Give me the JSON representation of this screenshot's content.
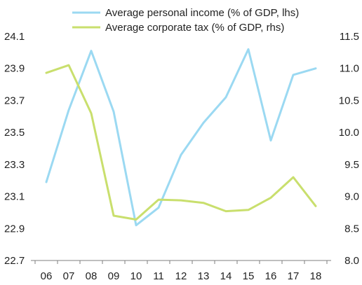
{
  "chart_data": {
    "type": "line",
    "title": "",
    "xlabel": "",
    "ylabel": "",
    "categories": [
      "06",
      "07",
      "08",
      "09",
      "10",
      "11",
      "12",
      "13",
      "14",
      "15",
      "16",
      "17",
      "18"
    ],
    "y_left": {
      "lim": [
        22.7,
        24.1
      ],
      "ticks": [
        22.7,
        22.9,
        23.1,
        23.3,
        23.5,
        23.7,
        23.9,
        24.1
      ],
      "tick_labels": [
        "22.7",
        "22.9",
        "23.1",
        "23.3",
        "23.5",
        "23.7",
        "23.9",
        "24.1"
      ]
    },
    "y_right": {
      "lim": [
        8.0,
        11.5
      ],
      "ticks": [
        8.0,
        8.5,
        9.0,
        9.5,
        10.0,
        10.5,
        11.0,
        11.5
      ],
      "tick_labels": [
        "8.0",
        "8.5",
        "9.0",
        "9.5",
        "10.0",
        "10.5",
        "11.0",
        "11.5"
      ]
    },
    "grid": false,
    "legend_position": "top-center",
    "series": [
      {
        "name": "Average personal income (% of GDP, lhs)",
        "axis": "left",
        "color": "#9bd9f2",
        "values": [
          23.19,
          23.64,
          24.01,
          23.63,
          22.92,
          23.03,
          23.36,
          23.56,
          23.72,
          24.02,
          23.45,
          23.86,
          23.9
        ]
      },
      {
        "name": "Average corporate tax (% of GDP, rhs)",
        "axis": "right",
        "color": "#c9df6d",
        "values": [
          10.93,
          11.05,
          10.3,
          8.7,
          8.64,
          8.95,
          8.94,
          8.9,
          8.77,
          8.79,
          8.98,
          9.3,
          8.85
        ]
      }
    ]
  }
}
